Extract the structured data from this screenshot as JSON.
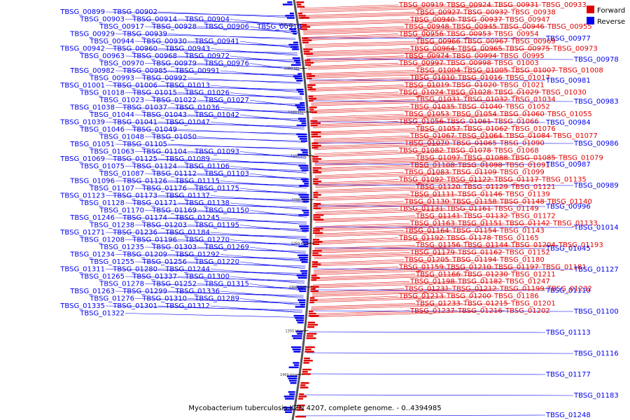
{
  "colors": {
    "forward": "#e00000",
    "reverse": "#0000ee",
    "backbone": "#555555"
  },
  "legend": {
    "forward_label": "Forward",
    "reverse_label": "Reverse"
  },
  "caption": "Mycobacterium tuberculosis KZN 4207, complete genome. - 0..4394985",
  "ticks": [
    "1000 kbp",
    "1050 kbp",
    "1100 kbp",
    "1150 kbp",
    "1200 kbp",
    "1250 kbp",
    "1300 kbp",
    "1350 kbp",
    "1400 kbp"
  ],
  "reverse_labels": [
    "TBSG_00899",
    "TBSG_00902",
    "TBSG_00903",
    "TBSG_00914",
    "TBSG_00904",
    "TBSG_00917",
    "TBSG_00928",
    "TBSG_00906",
    "TBSG_00918",
    "TBSG_00929",
    "TBSG_00939",
    "TBSG_00944",
    "TBSG_00930",
    "TBSG_00941",
    "TBSG_00942",
    "TBSG_00960",
    "TBSG_00943",
    "TBSG_00963",
    "TBSG_00968",
    "TBSG_00972",
    "TBSG_00970",
    "TBSG_00979",
    "TBSG_00976",
    "TBSG_00982",
    "TBSG_00985",
    "TBSG_00991",
    "TBSG_00993",
    "TBSG_00992",
    "TBSG_01001",
    "TBSG_01006",
    "TBSG_01013",
    "TBSG_01018",
    "TBSG_01015",
    "TBSG_01026",
    "TBSG_01023",
    "TBSG_01022",
    "TBSG_01027",
    "TBSG_01038",
    "TBSG_01037",
    "TBSG_01036",
    "TBSG_01044",
    "TBSG_01043",
    "TBSG_01042",
    "TBSG_01039",
    "TBSG_01041",
    "TBSG_01047",
    "TBSG_01046",
    "TBSG_01049",
    "TBSG_01048",
    "TBSG_01050",
    "TBSG_01051",
    "TBSG_01105",
    "TBSG_01063",
    "TBSG_01104",
    "TBSG_01093",
    "TBSG_01069",
    "TBSG_01125",
    "TBSG_01089",
    "TBSG_01075",
    "TBSG_01124",
    "TBSG_01106",
    "TBSG_01087",
    "TBSG_01112",
    "TBSG_01103",
    "TBSG_01096",
    "TBSG_01126",
    "TBSG_01115",
    "TBSG_01107",
    "TBSG_01176",
    "TBSG_01175",
    "TBSG_01123",
    "TBSG_01173",
    "TBSG_01137",
    "TBSG_01128",
    "TBSG_01171",
    "TBSG_01138",
    "TBSG_01170",
    "TBSG_01169",
    "TBSG_01150",
    "TBSG_01246",
    "TBSG_01174",
    "TBSG_01245",
    "TBSG_01238",
    "TBSG_01203",
    "TBSG_01195",
    "TBSG_01271",
    "TBSG_01236",
    "TBSG_01184",
    "TBSG_01208",
    "TBSG_01196",
    "TBSG_01270",
    "TBSG_01235",
    "TBSG_01303",
    "TBSG_01269",
    "TBSG_01234",
    "TBSG_01209",
    "TBSG_01292",
    "TBSG_01255",
    "TBSG_01256",
    "TBSG_01220",
    "TBSG_01311",
    "TBSG_01280",
    "TBSG_01244",
    "TBSG_01265",
    "TBSG_01337",
    "TBSG_01300",
    "TBSG_01278",
    "TBSG_01252",
    "TBSG_01315",
    "TBSG_01263",
    "TBSG_01299",
    "TBSG_01336",
    "TBSG_01276",
    "TBSG_01310",
    "TBSG_01289",
    "TBSG_01335",
    "TBSG_01301",
    "TBSG_01312",
    "TBSG_01322"
  ],
  "reverse_right_labels": [
    "TBSG_00977",
    "TBSG_00978",
    "TBSG_00981",
    "TBSG_00983",
    "TBSG_00984",
    "TBSG_00986",
    "TBSG_00987",
    "TBSG_00989",
    "TBSG_00996",
    "TBSG_01014",
    "TBSG_01045",
    "TBSG_01127",
    "TBSG_01110",
    "TBSG_01100",
    "TBSG_01113",
    "TBSG_01116",
    "TBSG_01177",
    "TBSG_01183",
    "TBSG_01248"
  ],
  "forward_labels": [
    "TBSG_00919",
    "TBSG_00924",
    "TBSG_00931",
    "TBSG_00933",
    "TBSG_00927",
    "TBSG_00932",
    "TBSG_00938",
    "TBSG_00940",
    "TBSG_00937",
    "TBSG_00947",
    "TBSG_00948",
    "TBSG_00945",
    "TBSG_00946",
    "TBSG_00955",
    "TBSG_00956",
    "TBSG_00953",
    "TBSG_00954",
    "TBSG_00966",
    "TBSG_00967",
    "TBSG_00969",
    "TBSG_00964",
    "TBSG_00965",
    "TBSG_00975",
    "TBSG_00973",
    "TBSG_00974",
    "TBSG_00994",
    "TBSG_00995",
    "TBSG_00997",
    "TBSG_00998",
    "TBSG_01003",
    "TBSG_01004",
    "TBSG_01005",
    "TBSG_01007",
    "TBSG_01008",
    "TBSG_01010",
    "TBSG_01016",
    "TBSG_01017",
    "TBSG_01019",
    "TBSG_01020",
    "TBSG_01021",
    "TBSG_01024",
    "TBSG_01028",
    "TBSG_01029",
    "TBSG_01030",
    "TBSG_01031",
    "TBSG_01032",
    "TBSG_01034",
    "TBSG_01035",
    "TBSG_01040",
    "TBSG_01052",
    "TBSG_01053",
    "TBSG_01054",
    "TBSG_01060",
    "TBSG_01055",
    "TBSG_01056",
    "TBSG_01061",
    "TBSG_01066",
    "TBSG_01057",
    "TBSG_01062",
    "TBSG_01076",
    "TBSG_01067",
    "TBSG_01064",
    "TBSG_01084",
    "TBSG_01077",
    "TBSG_01070",
    "TBSG_01065",
    "TBSG_01090",
    "TBSG_01082",
    "TBSG_01078",
    "TBSG_01068",
    "TBSG_01097",
    "TBSG_01088",
    "TBSG_01085",
    "TBSG_01079",
    "TBSG_01108",
    "TBSG_01098",
    "TBSG_01091",
    "TBSG_01083",
    "TBSG_01109",
    "TBSG_01099",
    "TBSG_01092",
    "TBSG_01122",
    "TBSG_01117",
    "TBSG_01135",
    "TBSG_01120",
    "TBSG_01129",
    "TBSG_01121",
    "TBSG_01111",
    "TBSG_01146",
    "TBSG_01139",
    "TBSG_01130",
    "TBSG_01158",
    "TBSG_01148",
    "TBSG_01140",
    "TBSG_01131",
    "TBSG_01161",
    "TBSG_01149",
    "TBSG_01141",
    "TBSG_01132",
    "TBSG_01172",
    "TBSG_01163",
    "TBSG_01151",
    "TBSG_01142",
    "TBSG_01133",
    "TBSG_01164",
    "TBSG_01154",
    "TBSG_01143",
    "TBSG_01192",
    "TBSG_01178",
    "TBSG_01165",
    "TBSG_01156",
    "TBSG_01144",
    "TBSG_01204",
    "TBSG_01193",
    "TBSG_01179",
    "TBSG_01162",
    "TBSG_01152",
    "TBSG_01205",
    "TBSG_01194",
    "TBSG_01180",
    "TBSG_01159",
    "TBSG_01210",
    "TBSG_01197",
    "TBSG_01181",
    "TBSG_01166",
    "TBSG_01230",
    "TBSG_01211",
    "TBSG_01198",
    "TBSG_01182",
    "TBSG_01247",
    "TBSG_01231",
    "TBSG_01212",
    "TBSG_01199",
    "TBSG_01232",
    "TBSG_01213",
    "TBSG_01200",
    "TBSG_01186",
    "TBSG_01233",
    "TBSG_01215",
    "TBSG_01201",
    "TBSG_01237",
    "TBSG_01216",
    "TBSG_01202"
  ]
}
